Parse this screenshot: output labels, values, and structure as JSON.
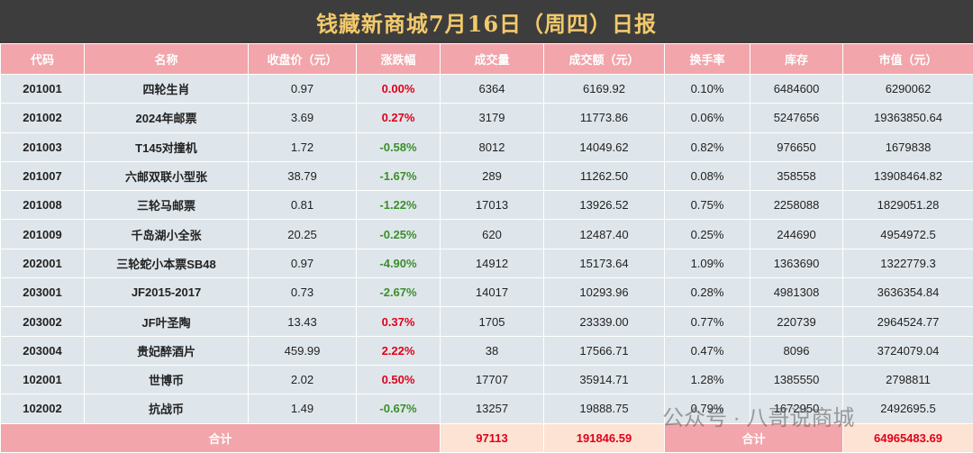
{
  "header": {
    "title": "钱藏新商城7月16日（周四）日报"
  },
  "table": {
    "columns": [
      "代码",
      "名称",
      "收盘价（元）",
      "涨跌幅",
      "成交量",
      "成交额（元）",
      "换手率",
      "库存",
      "市值（元）"
    ],
    "rows": [
      [
        "201001",
        "四轮生肖",
        "0.97",
        "0.00%",
        "6364",
        "6169.92",
        "0.10%",
        "6484600",
        "6290062"
      ],
      [
        "201002",
        "2024年邮票",
        "3.69",
        "0.27%",
        "3179",
        "11773.86",
        "0.06%",
        "5247656",
        "19363850.64"
      ],
      [
        "201003",
        "T145对撞机",
        "1.72",
        "-0.58%",
        "8012",
        "14049.62",
        "0.82%",
        "976650",
        "1679838"
      ],
      [
        "201007",
        "六邮双联小型张",
        "38.79",
        "-1.67%",
        "289",
        "11262.50",
        "0.08%",
        "358558",
        "13908464.82"
      ],
      [
        "201008",
        "三轮马邮票",
        "0.81",
        "-1.22%",
        "17013",
        "13926.52",
        "0.75%",
        "2258088",
        "1829051.28"
      ],
      [
        "201009",
        "千岛湖小全张",
        "20.25",
        "-0.25%",
        "620",
        "12487.40",
        "0.25%",
        "244690",
        "4954972.5"
      ],
      [
        "202001",
        "三轮蛇小本票SB48",
        "0.97",
        "-4.90%",
        "14912",
        "15173.64",
        "1.09%",
        "1363690",
        "1322779.3"
      ],
      [
        "203001",
        "JF2015-2017",
        "0.73",
        "-2.67%",
        "14017",
        "10293.96",
        "0.28%",
        "4981308",
        "3636354.84"
      ],
      [
        "203002",
        "JF叶圣陶",
        "13.43",
        "0.37%",
        "1705",
        "23339.00",
        "0.77%",
        "220739",
        "2964524.77"
      ],
      [
        "203004",
        "贵妃醉酒片",
        "459.99",
        "2.22%",
        "38",
        "17566.71",
        "0.47%",
        "8096",
        "3724079.04"
      ],
      [
        "102001",
        "世博币",
        "2.02",
        "0.50%",
        "17707",
        "35914.71",
        "1.28%",
        "1385550",
        "2798811"
      ],
      [
        "102002",
        "抗战币",
        "1.49",
        "-0.67%",
        "13257",
        "19888.75",
        "0.79%",
        "1672950",
        "2492695.5"
      ]
    ],
    "footer": {
      "label": "合计",
      "volume": "97113",
      "amount": "191846.59",
      "label2": "合计",
      "market_value": "64965483.69"
    }
  },
  "watermark": "公众号 · 八哥说商城"
}
